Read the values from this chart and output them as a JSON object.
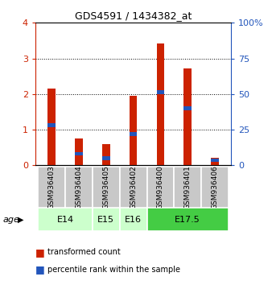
{
  "title": "GDS4591 / 1434382_at",
  "samples": [
    "GSM936403",
    "GSM936404",
    "GSM936405",
    "GSM936402",
    "GSM936400",
    "GSM936401",
    "GSM936406"
  ],
  "red_values": [
    2.15,
    0.75,
    0.6,
    1.95,
    3.42,
    2.72,
    0.22
  ],
  "blue_positions": [
    1.12,
    0.32,
    0.2,
    0.88,
    2.05,
    1.6,
    0.14
  ],
  "blue_heights": [
    0.12,
    0.1,
    0.1,
    0.12,
    0.12,
    0.12,
    0.08
  ],
  "red_color": "#CC2200",
  "blue_color": "#2255BB",
  "ylim_left": [
    0,
    4
  ],
  "ylim_right": [
    0,
    100
  ],
  "yticks_left": [
    0,
    1,
    2,
    3,
    4
  ],
  "yticks_right": [
    0,
    25,
    50,
    75,
    100
  ],
  "age_groups": [
    {
      "label": "E14",
      "start": 0,
      "end": 2,
      "color": "#ccffcc"
    },
    {
      "label": "E15",
      "start": 2,
      "end": 3,
      "color": "#ccffcc"
    },
    {
      "label": "E16",
      "start": 3,
      "end": 4,
      "color": "#ccffcc"
    },
    {
      "label": "E17.5",
      "start": 4,
      "end": 7,
      "color": "#44cc44"
    }
  ],
  "bar_width": 0.28,
  "background_color": "#ffffff",
  "plot_bg": "#ffffff",
  "sample_area_color": "#c8c8c8",
  "age_label": "age"
}
